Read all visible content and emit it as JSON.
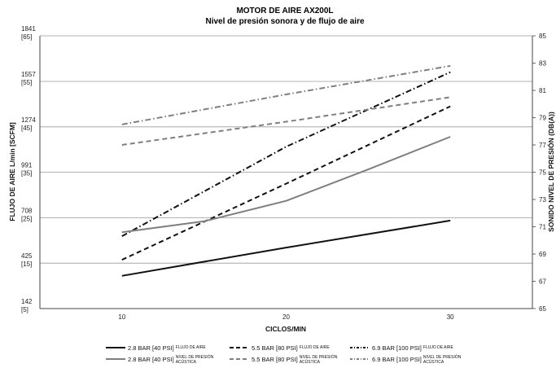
{
  "chart_data": {
    "type": "line",
    "title": "MOTOR DE AIRE AX200L",
    "subtitle": "Nivel de presión sonora y de flujo de aire",
    "xlabel": "CICLOS/MIN",
    "ylabel_left": "FLUJO DE AIRE L/min [SCFM]",
    "ylabel_right": "SONIDO NIVEL DE PRESIÓN (DB(A))",
    "x_ticks": [
      "10",
      "20",
      "30"
    ],
    "xlim": [
      5,
      35
    ],
    "left_axis": {
      "ylim": [
        142,
        1841
      ],
      "ticks": [
        {
          "value": 142,
          "line1": "142",
          "line2": "[5]"
        },
        {
          "value": 425,
          "line1": "425",
          "line2": "[15]"
        },
        {
          "value": 708,
          "line1": "708",
          "line2": "[25]"
        },
        {
          "value": 991,
          "line1": "991",
          "line2": "[35]"
        },
        {
          "value": 1274,
          "line1": "1274",
          "line2": "[45]"
        },
        {
          "value": 1557,
          "line1": "1557",
          "line2": "[55]"
        },
        {
          "value": 1841,
          "line1": "1841",
          "line2": "[65]"
        }
      ]
    },
    "right_axis": {
      "ylim": [
        65,
        85
      ],
      "ticks": [
        "65",
        "67",
        "69",
        "71",
        "73",
        "75",
        "77",
        "79",
        "81",
        "83",
        "85"
      ]
    },
    "grid": "horizontal",
    "series": [
      {
        "name": "2.8 BAR [40 PSI]",
        "desc": "FLUJO DE AIRE",
        "axis": "left",
        "dash": "solid",
        "color": "#111111",
        "x": [
          10,
          20,
          30
        ],
        "y": [
          346,
          522,
          690
        ]
      },
      {
        "name": "5.5 BAR [80 PSI]",
        "desc": "FLUJO DE AIRE",
        "axis": "left",
        "dash": "dash",
        "color": "#111111",
        "x": [
          10,
          20,
          30
        ],
        "y": [
          446,
          920,
          1402
        ]
      },
      {
        "name": "6.9 BAR [100 PSI]",
        "desc": "FLUJO DE AIRE",
        "axis": "left",
        "dash": "dashdot",
        "color": "#111111",
        "x": [
          10,
          20,
          30
        ],
        "y": [
          593,
          1150,
          1615
        ]
      },
      {
        "name": "2.8 BAR [40 PSI]",
        "desc": "NIVEL DE PRESIÓN ACÚSTICA",
        "axis": "right",
        "dash": "solid",
        "color": "#7f7f7f",
        "x": [
          10,
          15,
          20,
          25,
          30
        ],
        "y": [
          70.6,
          71.4,
          72.9,
          75.2,
          77.6
        ]
      },
      {
        "name": "5.5 BAR [80 PSI]",
        "desc": "NIVEL DE PRESIÓN ACÚSTICA",
        "axis": "right",
        "dash": "dash",
        "color": "#7f7f7f",
        "x": [
          10,
          20,
          30
        ],
        "y": [
          77.0,
          78.7,
          80.5
        ]
      },
      {
        "name": "6.9 BAR [100 PSI]",
        "desc": "NIVEL DE PRESIÓN ACÚSTICA",
        "axis": "right",
        "dash": "dashdot",
        "color": "#7f7f7f",
        "x": [
          10,
          20,
          30
        ],
        "y": [
          78.5,
          80.7,
          82.8
        ]
      }
    ],
    "legend_position": "bottom",
    "legend": [
      {
        "label": "2.8 BAR [40 PSI]",
        "desc1": "FLUJO DE AIRE",
        "desc2": ""
      },
      {
        "label": "5.5 BAR [80 PSI]",
        "desc1": "FLUJO DE AIRE",
        "desc2": ""
      },
      {
        "label": "6.9 BAR [100 PSI]",
        "desc1": "FLUJO DE AIRE",
        "desc2": ""
      },
      {
        "label": "2.8 BAR [40 PSI]",
        "desc1": "NIVEL DE PRESIÓN",
        "desc2": "ACÚSTICA"
      },
      {
        "label": "5.5 BAR [80 PSI]",
        "desc1": "NIVEL DE PRESIÓN",
        "desc2": "ACÚSTICA"
      },
      {
        "label": "6.9 BAR [100 PSI]",
        "desc1": "NIVEL DE PRESIÓN",
        "desc2": "ACÚSTICA"
      }
    ]
  }
}
